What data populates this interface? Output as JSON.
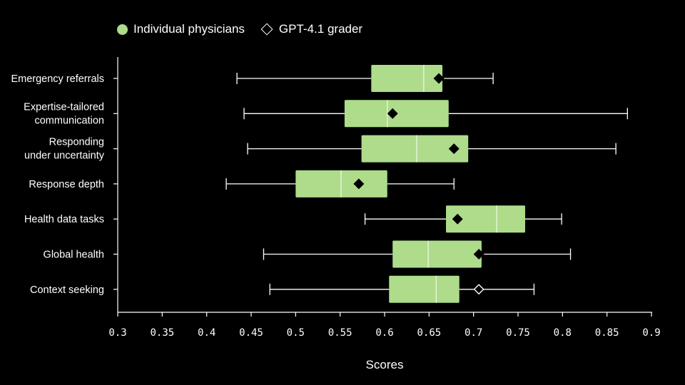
{
  "legend": {
    "physicians_label": "Individual physicians",
    "grader_label": "GPT-4.1 grader"
  },
  "colors": {
    "background": "#000000",
    "box_fill": "#aedc8b",
    "whisker": "#ffffff",
    "marker": "#000000"
  },
  "chart_data": {
    "type": "boxplot",
    "xlabel": "Scores",
    "ylabel": "",
    "xlim": [
      0.3,
      0.9
    ],
    "xticks": [
      "0.3",
      "0.35",
      "0.4",
      "0.45",
      "0.5",
      "0.55",
      "0.6",
      "0.65",
      "0.7",
      "0.75",
      "0.8",
      "0.85",
      "0.9"
    ],
    "grid": false,
    "legend_position": "top-left",
    "categories": [
      [
        "Emergency referrals"
      ],
      [
        "Expertise-tailored",
        "communication"
      ],
      [
        "Responding",
        "under uncertainty"
      ],
      [
        "Response depth"
      ],
      [
        "Health data tasks"
      ],
      [
        "Global health"
      ],
      [
        "Context seeking"
      ]
    ],
    "series": [
      {
        "name": "Individual physicians",
        "boxes": [
          {
            "min": 0.434,
            "q1": 0.585,
            "median": 0.644,
            "q3": 0.665,
            "max": 0.722
          },
          {
            "min": 0.442,
            "q1": 0.555,
            "median": 0.603,
            "q3": 0.672,
            "max": 0.873
          },
          {
            "min": 0.446,
            "q1": 0.574,
            "median": 0.636,
            "q3": 0.694,
            "max": 0.86
          },
          {
            "min": 0.422,
            "q1": 0.5,
            "median": 0.551,
            "q3": 0.603,
            "max": 0.678
          },
          {
            "min": 0.578,
            "q1": 0.669,
            "median": 0.726,
            "q3": 0.758,
            "max": 0.799
          },
          {
            "min": 0.464,
            "q1": 0.609,
            "median": 0.649,
            "q3": 0.709,
            "max": 0.809
          },
          {
            "min": 0.471,
            "q1": 0.605,
            "median": 0.658,
            "q3": 0.684,
            "max": 0.768
          }
        ]
      },
      {
        "name": "GPT-4.1 grader",
        "values": [
          0.661,
          0.609,
          0.678,
          0.571,
          0.682,
          0.706,
          0.706
        ]
      }
    ]
  }
}
